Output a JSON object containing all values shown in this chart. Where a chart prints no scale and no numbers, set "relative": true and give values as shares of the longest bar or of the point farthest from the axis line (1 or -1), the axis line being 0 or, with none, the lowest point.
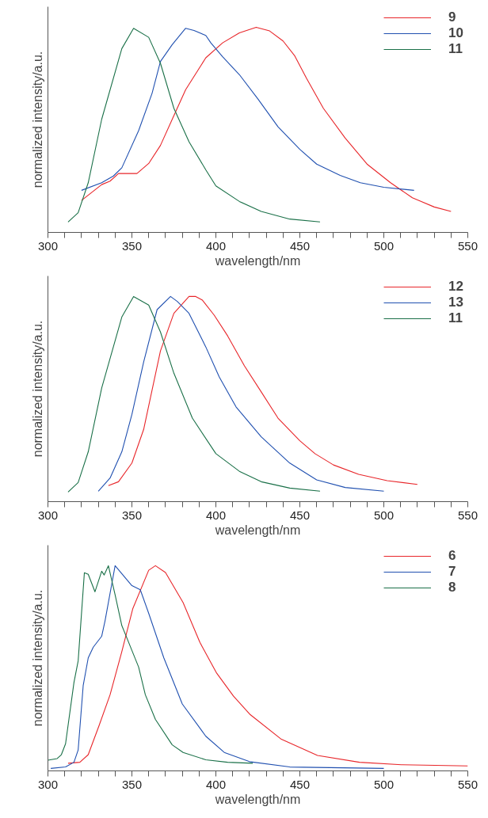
{
  "chart_data": [
    {
      "type": "line",
      "relative": true,
      "xlabel": "wavelength/nm",
      "ylabel": "normalized intensity/a.u.",
      "xlim": [
        300,
        550
      ],
      "xticks": [
        300,
        {
          "value": 310,
          "label": null
        },
        {
          "value": 320,
          "label": null
        },
        {
          "value": 330,
          "label": null
        },
        {
          "value": 340,
          "label": null
        },
        350,
        {
          "value": 360,
          "label": null
        },
        {
          "value": 370,
          "label": null
        },
        {
          "value": 380,
          "label": null
        },
        {
          "value": 390,
          "label": null
        },
        400,
        {
          "value": 410,
          "label": null
        },
        {
          "value": 420,
          "label": null
        },
        {
          "value": 430,
          "label": null
        },
        {
          "value": 440,
          "label": null
        },
        450,
        {
          "value": 460,
          "label": null
        },
        {
          "value": 470,
          "label": null
        },
        {
          "value": 480,
          "label": null
        },
        {
          "value": 490,
          "label": null
        },
        500,
        {
          "value": 510,
          "label": null
        },
        {
          "value": 520,
          "label": null
        },
        {
          "value": 530,
          "label": null
        },
        {
          "value": 540,
          "label": null
        },
        550
      ],
      "grid": false,
      "legend": "top right",
      "tick_labels": "x",
      "series": [
        {
          "name": "9",
          "color": "#e8262a",
          "x": [
            320,
            332,
            337,
            342,
            353,
            360,
            367,
            375,
            382,
            394,
            404,
            414,
            424,
            432,
            440,
            447,
            454,
            464,
            477,
            490,
            504,
            517,
            530,
            540
          ],
          "values": [
            0.156,
            0.233,
            0.25,
            0.287,
            0.287,
            0.336,
            0.424,
            0.569,
            0.696,
            0.851,
            0.924,
            0.973,
            1.0,
            0.982,
            0.933,
            0.86,
            0.751,
            0.605,
            0.46,
            0.333,
            0.242,
            0.169,
            0.124,
            0.102
          ]
        },
        {
          "name": "10",
          "color": "#2050b0",
          "x": [
            320,
            332,
            339,
            344,
            354,
            362,
            367,
            374,
            382,
            387,
            394,
            397,
            404,
            414,
            425,
            437,
            450,
            460,
            474,
            486,
            500,
            518
          ],
          "values": [
            0.205,
            0.242,
            0.275,
            0.315,
            0.496,
            0.678,
            0.833,
            0.915,
            0.995,
            0.984,
            0.96,
            0.924,
            0.856,
            0.769,
            0.651,
            0.515,
            0.405,
            0.333,
            0.278,
            0.242,
            0.22,
            0.205
          ]
        },
        {
          "name": "11",
          "color": "#1a7048",
          "x": [
            312,
            318,
            324,
            332,
            344,
            351,
            360,
            367,
            375,
            384,
            394,
            400,
            414,
            427,
            444,
            462
          ],
          "values": [
            0.051,
            0.096,
            0.242,
            0.551,
            0.896,
            0.995,
            0.951,
            0.824,
            0.605,
            0.442,
            0.305,
            0.227,
            0.151,
            0.102,
            0.065,
            0.051
          ]
        }
      ]
    },
    {
      "type": "line",
      "relative": true,
      "xlabel": "wavelength/nm",
      "ylabel": "normalized intensity/a.u.",
      "xlim": [
        300,
        550
      ],
      "xticks": [
        300,
        {
          "value": 310,
          "label": null
        },
        {
          "value": 320,
          "label": null
        },
        {
          "value": 330,
          "label": null
        },
        {
          "value": 340,
          "label": null
        },
        350,
        {
          "value": 360,
          "label": null
        },
        {
          "value": 370,
          "label": null
        },
        {
          "value": 380,
          "label": null
        },
        {
          "value": 390,
          "label": null
        },
        400,
        {
          "value": 410,
          "label": null
        },
        {
          "value": 420,
          "label": null
        },
        {
          "value": 430,
          "label": null
        },
        {
          "value": 440,
          "label": null
        },
        450,
        {
          "value": 460,
          "label": null
        },
        {
          "value": 470,
          "label": null
        },
        {
          "value": 480,
          "label": null
        },
        {
          "value": 490,
          "label": null
        },
        500,
        {
          "value": 510,
          "label": null
        },
        {
          "value": 520,
          "label": null
        },
        {
          "value": 530,
          "label": null
        },
        {
          "value": 540,
          "label": null
        },
        550
      ],
      "grid": false,
      "legend": "top right",
      "tick_labels": "x",
      "series": [
        {
          "name": "12",
          "color": "#e8262a",
          "x": [
            336,
            342,
            350,
            357,
            367,
            375,
            384,
            388,
            392,
            399,
            407,
            417,
            427,
            437,
            450,
            459,
            470,
            485,
            502,
            520
          ],
          "values": [
            0.078,
            0.097,
            0.188,
            0.352,
            0.735,
            0.918,
            1.0,
            1.0,
            0.982,
            0.909,
            0.808,
            0.662,
            0.535,
            0.407,
            0.297,
            0.234,
            0.179,
            0.133,
            0.102,
            0.084
          ]
        },
        {
          "name": "13",
          "color": "#2050b0",
          "x": [
            330,
            337,
            344,
            350,
            357,
            365,
            373,
            377,
            384,
            394,
            402,
            412,
            427,
            444,
            460,
            477,
            500
          ],
          "values": [
            0.051,
            0.115,
            0.243,
            0.425,
            0.681,
            0.936,
            1.0,
            0.976,
            0.918,
            0.754,
            0.608,
            0.462,
            0.316,
            0.188,
            0.106,
            0.069,
            0.051
          ]
        },
        {
          "name": "11",
          "color": "#1a7048",
          "x": [
            312,
            318,
            324,
            332,
            344,
            351,
            360,
            367,
            375,
            386,
            400,
            414,
            427,
            444,
            462
          ],
          "values": [
            0.047,
            0.093,
            0.243,
            0.553,
            0.9,
            1.0,
            0.958,
            0.827,
            0.626,
            0.407,
            0.234,
            0.148,
            0.097,
            0.066,
            0.051
          ]
        }
      ]
    },
    {
      "type": "line",
      "relative": true,
      "xlabel": "wavelength/nm",
      "ylabel": "normalized intensity/a.u.",
      "xlim": [
        300,
        550
      ],
      "xticks": [
        300,
        {
          "value": 310,
          "label": null
        },
        {
          "value": 320,
          "label": null
        },
        {
          "value": 330,
          "label": null
        },
        {
          "value": 340,
          "label": null
        },
        350,
        {
          "value": 360,
          "label": null
        },
        {
          "value": 370,
          "label": null
        },
        {
          "value": 380,
          "label": null
        },
        {
          "value": 390,
          "label": null
        },
        400,
        {
          "value": 410,
          "label": null
        },
        {
          "value": 420,
          "label": null
        },
        {
          "value": 430,
          "label": null
        },
        {
          "value": 440,
          "label": null
        },
        450,
        {
          "value": 460,
          "label": null
        },
        {
          "value": 470,
          "label": null
        },
        {
          "value": 480,
          "label": null
        },
        {
          "value": 490,
          "label": null
        },
        500,
        {
          "value": 510,
          "label": null
        },
        {
          "value": 520,
          "label": null
        },
        {
          "value": 530,
          "label": null
        },
        {
          "value": 540,
          "label": null
        },
        550
      ],
      "grid": false,
      "legend": "top right",
      "tick_labels": "x",
      "series": [
        {
          "name": "6",
          "color": "#e8262a",
          "x": [
            312,
            319,
            324,
            330.5,
            337,
            344,
            350.5,
            360,
            364,
            370,
            380.5,
            390.5,
            400.5,
            410.5,
            420.5,
            439,
            460.5,
            485.5,
            510.5,
            550
          ],
          "values": [
            0.037,
            0.042,
            0.079,
            0.222,
            0.371,
            0.581,
            0.79,
            0.978,
            1.0,
            0.967,
            0.82,
            0.626,
            0.476,
            0.364,
            0.274,
            0.154,
            0.075,
            0.042,
            0.03,
            0.024
          ]
        },
        {
          "name": "7",
          "color": "#2050b0",
          "x": [
            301.7,
            310.5,
            315.5,
            318,
            321,
            324,
            327,
            332,
            334,
            340,
            350,
            355,
            360,
            369,
            380,
            394,
            405,
            420,
            444,
            500
          ],
          "values": [
            0.012,
            0.019,
            0.042,
            0.102,
            0.416,
            0.551,
            0.603,
            0.656,
            0.731,
            1.0,
            0.903,
            0.883,
            0.768,
            0.551,
            0.326,
            0.169,
            0.09,
            0.045,
            0.019,
            0.012
          ]
        },
        {
          "name": "8",
          "color": "#1a7048",
          "x": [
            300,
            305.5,
            308,
            310.5,
            315.5,
            318,
            321.7,
            324,
            328,
            332,
            333.5,
            336,
            340,
            344,
            347,
            354,
            358,
            364,
            374,
            380.5,
            394,
            407,
            422
          ],
          "values": [
            0.052,
            0.06,
            0.079,
            0.132,
            0.431,
            0.536,
            0.966,
            0.958,
            0.873,
            0.973,
            0.955,
            1.0,
            0.858,
            0.708,
            0.648,
            0.506,
            0.371,
            0.251,
            0.127,
            0.09,
            0.054,
            0.042,
            0.037
          ]
        }
      ]
    }
  ]
}
